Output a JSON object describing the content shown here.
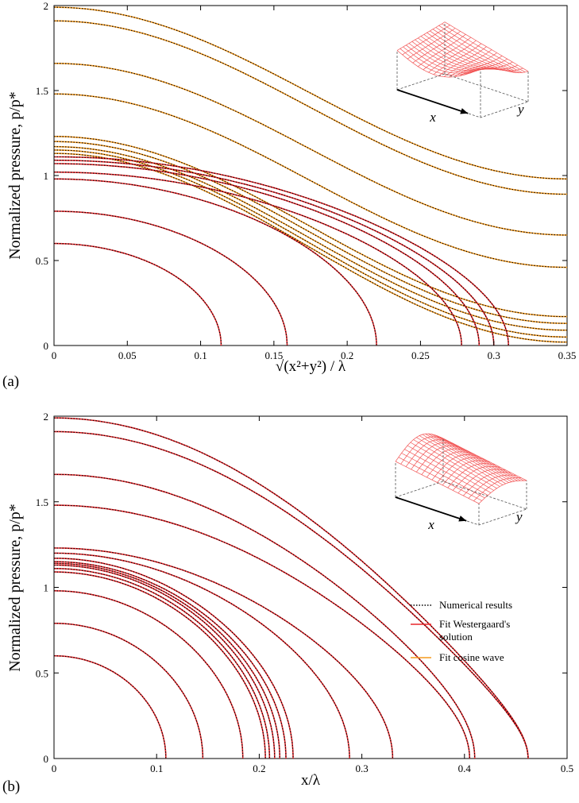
{
  "figure": {
    "panels": [
      "(a)",
      "(b)"
    ]
  },
  "chart_data": [
    {
      "type": "line",
      "panel_label": "(a)",
      "xlabel": "√(x²+y²) / λ",
      "ylabel": "Normalized pressure, p/p*",
      "xlim": [
        0,
        0.35
      ],
      "ylim": [
        0,
        2
      ],
      "xticks": [
        0,
        0.05,
        0.1,
        0.15,
        0.2,
        0.25,
        0.3,
        0.35
      ],
      "xtick_labels": [
        "0",
        "0.05",
        "0.1",
        "0.15",
        "0.2",
        "0.25",
        "0.3",
        "0.35"
      ],
      "yticks": [
        0,
        0.5,
        1,
        1.5,
        2
      ],
      "ytick_labels": [
        "0",
        "0.5",
        "1",
        "1.5",
        "2"
      ],
      "inset_labels": {
        "x": "x",
        "y": "y"
      },
      "series": [
        {
          "color": "#f59a1e",
          "style": "solid",
          "kind": "cosine",
          "p0": 1.99,
          "pend": 0.98,
          "x_end": 0.35
        },
        {
          "color": "#f59a1e",
          "style": "solid",
          "kind": "cosine",
          "p0": 1.91,
          "pend": 0.89,
          "x_end": 0.35
        },
        {
          "color": "#f59a1e",
          "style": "solid",
          "kind": "cosine",
          "p0": 1.66,
          "pend": 0.65,
          "x_end": 0.35
        },
        {
          "color": "#f59a1e",
          "style": "solid",
          "kind": "cosine",
          "p0": 1.48,
          "pend": 0.46,
          "x_end": 0.35
        },
        {
          "color": "#f59a1e",
          "style": "solid",
          "kind": "cosine",
          "p0": 1.23,
          "pend": 0.17,
          "x_end": 0.35
        },
        {
          "color": "#f59a1e",
          "style": "solid",
          "kind": "cosine",
          "p0": 1.2,
          "pend": 0.13,
          "x_end": 0.35
        },
        {
          "color": "#f59a1e",
          "style": "solid",
          "kind": "cosine",
          "p0": 1.17,
          "pend": 0.09,
          "x_end": 0.35
        },
        {
          "color": "#f59a1e",
          "style": "solid",
          "kind": "cosine",
          "p0": 1.15,
          "pend": 0.05,
          "x_end": 0.35
        },
        {
          "color": "#f59a1e",
          "style": "solid",
          "kind": "cosine",
          "p0": 1.13,
          "pend": 0.02,
          "x_end": 0.35
        },
        {
          "color": "#e8262a",
          "style": "solid",
          "kind": "westergaard",
          "p0": 1.11,
          "a": 0.31
        },
        {
          "color": "#e8262a",
          "style": "solid",
          "kind": "westergaard",
          "p0": 1.09,
          "a": 0.3
        },
        {
          "color": "#e8262a",
          "style": "solid",
          "kind": "westergaard",
          "p0": 1.07,
          "a": 0.29
        },
        {
          "color": "#e8262a",
          "style": "solid",
          "kind": "westergaard",
          "p0": 1.02,
          "a": 0.278
        },
        {
          "color": "#e8262a",
          "style": "solid",
          "kind": "westergaard",
          "p0": 0.98,
          "a": 0.22
        },
        {
          "color": "#e8262a",
          "style": "solid",
          "kind": "westergaard",
          "p0": 0.79,
          "a": 0.159
        },
        {
          "color": "#e8262a",
          "style": "solid",
          "kind": "westergaard",
          "p0": 0.6,
          "a": 0.114
        }
      ]
    },
    {
      "type": "line",
      "panel_label": "(b)",
      "xlabel": "x/λ",
      "ylabel": "Normalized pressure, p/p*",
      "xlim": [
        0,
        0.5
      ],
      "ylim": [
        0,
        2
      ],
      "xticks": [
        0,
        0.1,
        0.2,
        0.3,
        0.4,
        0.5
      ],
      "xtick_labels": [
        "0",
        "0.1",
        "0.2",
        "0.3",
        "0.4",
        "0.5"
      ],
      "yticks": [
        0,
        0.5,
        1,
        1.5,
        2
      ],
      "ytick_labels": [
        "0",
        "0.5",
        "1",
        "1.5",
        "2"
      ],
      "inset_labels": {
        "x": "x",
        "y": "y"
      },
      "legend": {
        "placement": "right",
        "entries": [
          {
            "label": "Numerical results",
            "color": "#000000",
            "style": "dotted"
          },
          {
            "label": "Fit Westergaard's",
            "label2": "solution",
            "color": "#e8262a",
            "style": "solid"
          },
          {
            "label": "Fit  cosine wave",
            "color": "#f59a1e",
            "style": "solid"
          }
        ]
      },
      "series": [
        {
          "color": "#e8262a",
          "style": "solid",
          "kind": "westergaard",
          "p0": 1.99,
          "a": 0.462
        },
        {
          "color": "#e8262a",
          "style": "solid",
          "kind": "westergaard",
          "p0": 1.91,
          "a": 0.462
        },
        {
          "color": "#e8262a",
          "style": "solid",
          "kind": "westergaard",
          "p0": 1.66,
          "a": 0.41
        },
        {
          "color": "#e8262a",
          "style": "solid",
          "kind": "westergaard",
          "p0": 1.48,
          "a": 0.405
        },
        {
          "color": "#e8262a",
          "style": "solid",
          "kind": "westergaard",
          "p0": 1.23,
          "a": 0.33
        },
        {
          "color": "#e8262a",
          "style": "solid",
          "kind": "westergaard",
          "p0": 1.2,
          "a": 0.288
        },
        {
          "color": "#e8262a",
          "style": "solid",
          "kind": "westergaard",
          "p0": 1.17,
          "a": 0.233
        },
        {
          "color": "#e8262a",
          "style": "solid",
          "kind": "westergaard",
          "p0": 1.15,
          "a": 0.226
        },
        {
          "color": "#e8262a",
          "style": "solid",
          "kind": "westergaard",
          "p0": 1.14,
          "a": 0.22
        },
        {
          "color": "#e8262a",
          "style": "solid",
          "kind": "westergaard",
          "p0": 1.13,
          "a": 0.215
        },
        {
          "color": "#e8262a",
          "style": "solid",
          "kind": "westergaard",
          "p0": 1.11,
          "a": 0.21
        },
        {
          "color": "#e8262a",
          "style": "solid",
          "kind": "westergaard",
          "p0": 1.09,
          "a": 0.206
        },
        {
          "color": "#e8262a",
          "style": "solid",
          "kind": "westergaard",
          "p0": 0.98,
          "a": 0.184
        },
        {
          "color": "#e8262a",
          "style": "solid",
          "kind": "westergaard",
          "p0": 0.79,
          "a": 0.145
        },
        {
          "color": "#e8262a",
          "style": "solid",
          "kind": "westergaard",
          "p0": 0.6,
          "a": 0.109
        }
      ]
    }
  ]
}
